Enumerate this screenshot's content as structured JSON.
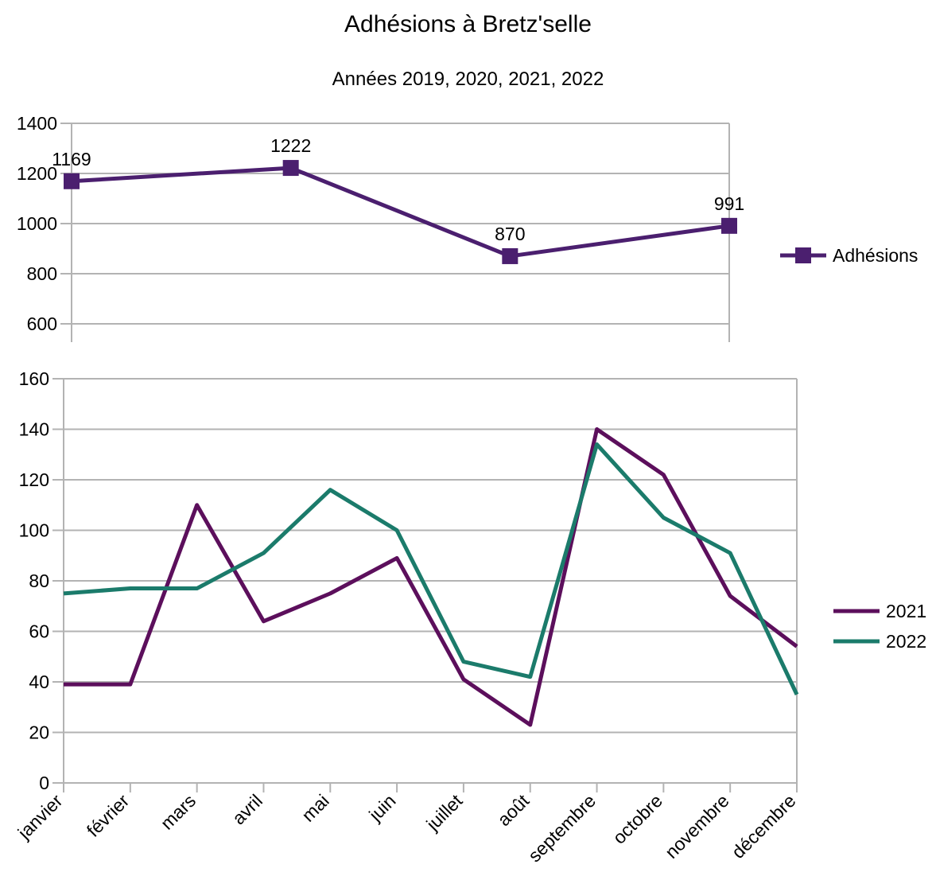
{
  "title": "Adhésions à Bretz'selle",
  "subtitle": "Années 2019, 2020, 2021, 2022",
  "chart_data": [
    {
      "type": "line",
      "x": [
        "2019",
        "2020",
        "2021",
        "2022"
      ],
      "series": [
        {
          "name": "Adhésions",
          "values": [
            1169,
            1222,
            870,
            991
          ],
          "color": "#4b1f6f",
          "marker": "square"
        }
      ],
      "data_labels": [
        "1169",
        "1222",
        "870",
        "991"
      ],
      "ylim": [
        600,
        1400
      ],
      "yticks": [
        600,
        800,
        1000,
        1200,
        1400
      ],
      "grid": true,
      "legend": "right"
    },
    {
      "type": "line",
      "categories": [
        "janvier",
        "février",
        "mars",
        "avril",
        "mai",
        "juin",
        "juillet",
        "août",
        "septembre",
        "octobre",
        "novembre",
        "décembre"
      ],
      "series": [
        {
          "name": "2021",
          "values": [
            39,
            39,
            110,
            64,
            75,
            89,
            41,
            23,
            140,
            122,
            74,
            54
          ],
          "color": "#5c0f5c"
        },
        {
          "name": "2022",
          "values": [
            75,
            77,
            77,
            91,
            116,
            100,
            48,
            42,
            134,
            105,
            91,
            35
          ],
          "color": "#1b7b6b"
        }
      ],
      "ylim": [
        0,
        160
      ],
      "yticks": [
        0,
        20,
        40,
        60,
        80,
        100,
        120,
        140,
        160
      ],
      "grid": true,
      "legend": "right"
    }
  ]
}
